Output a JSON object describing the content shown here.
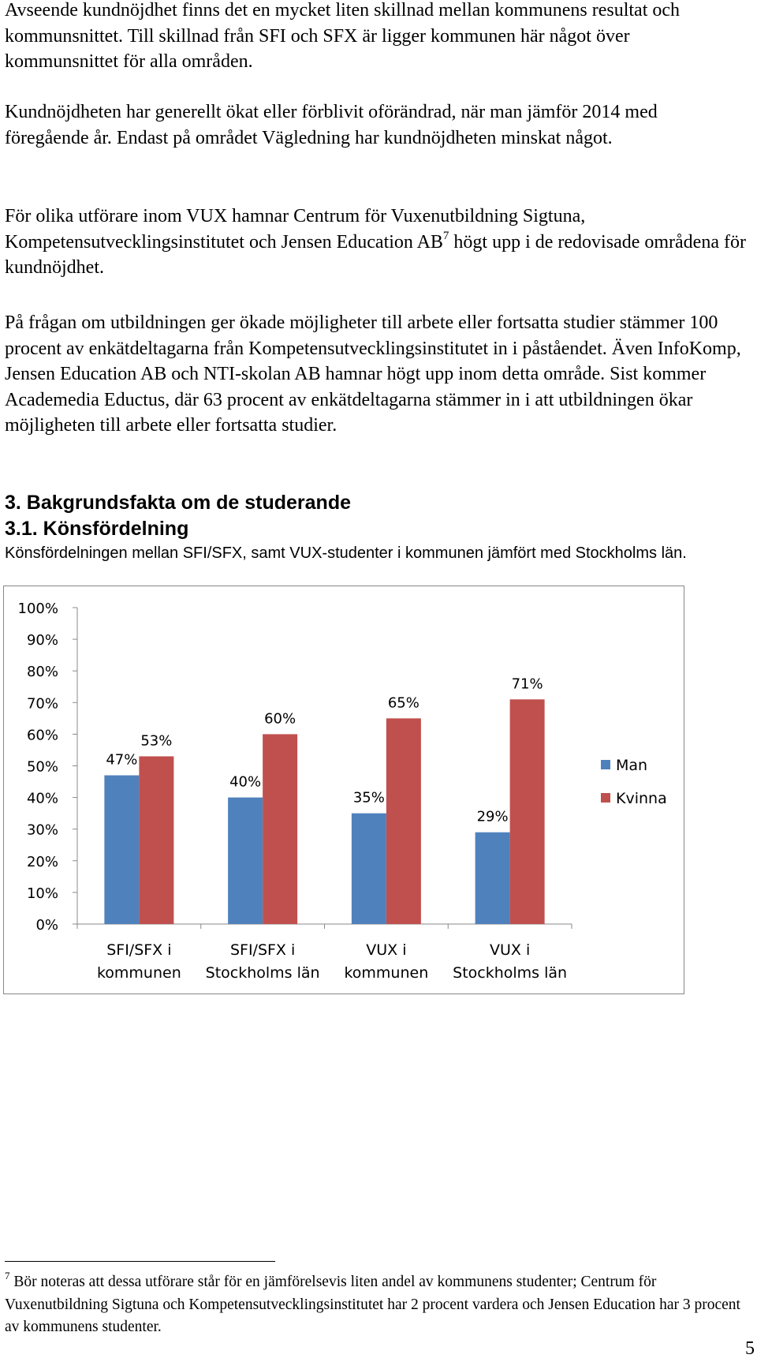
{
  "paragraphs": [
    "Avseende kundnöjdhet finns det en mycket liten skillnad mellan kommunens resultat och kommunsnittet. Till skillnad från SFI och SFX är ligger kommunen här något över kommunsnittet för alla områden.",
    "Kundnöjdheten har generellt ökat eller förblivit oförändrad, när man jämför 2014 med föregående år. Endast på området Vägledning har kundnöjdheten minskat något.",
    "För olika utförare inom VUX hamnar Centrum för Vuxenutbildning Sigtuna, Kompetensutvecklingsinstitutet och Jensen Education AB",
    "högt upp i de redovisade områdena för kundnöjdhet.",
    "På frågan om utbildningen ger ökade möjligheter till arbete eller fortsatta studier stämmer 100 procent av enkätdeltagarna från Kompetensutvecklingsinstitutet in i påståendet. Även InfoKomp, Jensen Education AB och NTI-skolan AB hamnar högt upp inom detta område. Sist kommer Academedia Eductus, där 63 procent av enkätdeltagarna stämmer in i att utbildningen ökar möjligheten till arbete eller fortsatta studier."
  ],
  "footnote_ref": "7",
  "heading_1": "3. Bakgrundsfakta om de studerande",
  "heading_2": "3.1. Könsfördelning",
  "caption": "Könsfördelningen mellan SFI/SFX, samt VUX-studenter i kommunen jämfört med Stockholms län.",
  "chart_data": {
    "type": "bar",
    "categories": [
      [
        "SFI/SFX i",
        "kommunen"
      ],
      [
        "SFI/SFX i",
        "Stockholms län"
      ],
      [
        "VUX i",
        "kommunen"
      ],
      [
        "VUX i",
        "Stockholms län"
      ]
    ],
    "series": [
      {
        "name": "Man",
        "color": "#4f81bd",
        "values": [
          47,
          40,
          35,
          29
        ],
        "labels": [
          "47%",
          "40%",
          "35%",
          "29%"
        ]
      },
      {
        "name": "Kvinna",
        "color": "#c0504d",
        "values": [
          53,
          60,
          65,
          71
        ],
        "labels": [
          "53%",
          "60%",
          "65%",
          "71%"
        ]
      }
    ],
    "ylim": [
      0,
      100
    ],
    "y_ticks": [
      "0%",
      "10%",
      "20%",
      "30%",
      "40%",
      "50%",
      "60%",
      "70%",
      "80%",
      "90%",
      "100%"
    ],
    "grid": false,
    "legend_position": "right"
  },
  "footnote": {
    "number": "7",
    "text": "Bör noteras att dessa utförare står för en jämförelsevis liten andel av kommunens studenter; Centrum för Vuxenutbildning Sigtuna och Kompetensutvecklingsinstitutet har 2 procent vardera och Jensen Education har 3 procent av kommunens studenter."
  },
  "page_number": "5"
}
